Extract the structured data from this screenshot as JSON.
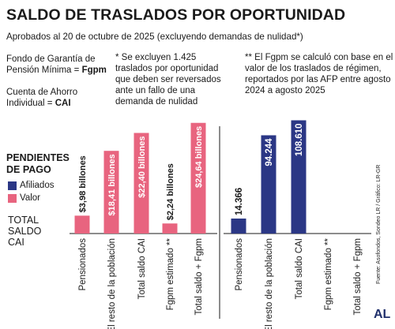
{
  "header": {
    "title": "SALDO DE TRASLADOS POR OPORTUNIDAD",
    "subtitle": "Aprobados al 20 de octubre de 2025 (excluyendo demandas de nulidad*)"
  },
  "notes": {
    "fgpm_line1": "Fondo de Garantía de",
    "fgpm_line2": "Pensión Mínima =",
    "fgpm_abbr": "Fgpm",
    "cai_line1": "Cuenta de Ahorro",
    "cai_line2": "Individual =",
    "cai_abbr": "CAI",
    "exclusion": "* Se excluyen 1.425 traslados por oportunidad que deben ser reversados ante un fallo de una demanda de nulidad",
    "fgpm_calc": "** El Fgpm se calculó con base en el valor de los traslados de régimen, reportados por las AFP entre agosto 2024 a agosto 2025"
  },
  "legend": {
    "title": "PENDIENTES DE PAGO",
    "afiliados": "Afiliados",
    "valor": "Valor",
    "total_line1": "TOTAL",
    "total_line2": "SALDO",
    "total_line3": "CAI"
  },
  "source": "Fuente: Asofondos, Sondeo LR / Gráfico: LR-GR",
  "logo": "AL",
  "colors": {
    "afiliados": "#2b3785",
    "valor": "#e8647f",
    "text": "#1a1a1a"
  },
  "chart_data": [
    {
      "type": "bar",
      "series": [
        {
          "name": "Valor",
          "unit": "billones",
          "values": [
            3.98,
            18.41,
            22.4,
            2.24,
            24.64
          ]
        }
      ],
      "categories": [
        "Pensionados",
        "El resto de la población",
        "Total saldo CAI",
        "Fgpm estimado **",
        "Total saldo + Fgpm"
      ],
      "labels": [
        "$3,98 billones",
        "$18,41 billones",
        "$22,40 billones",
        "$2,24 billones",
        "$24,64 billones"
      ]
    },
    {
      "type": "bar",
      "series": [
        {
          "name": "Afiliados",
          "values": [
            14366,
            94244,
            108610,
            null,
            null
          ]
        }
      ],
      "categories": [
        "Pensionados",
        "El resto de la población",
        "Total saldo CAI",
        "Fgpm estimado **",
        "Total saldo + Fgpm"
      ],
      "labels": [
        "14.366",
        "94.244",
        "108.610",
        "",
        ""
      ]
    }
  ]
}
